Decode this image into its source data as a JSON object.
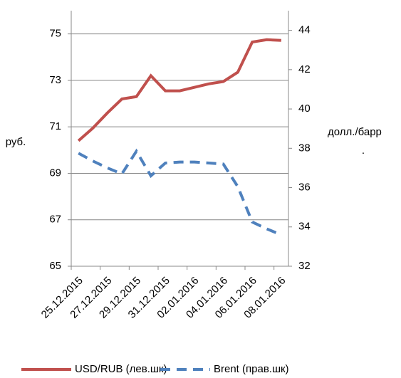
{
  "chart_data": {
    "type": "line",
    "categories": [
      "25.12.2015",
      null,
      "27.12.2015",
      null,
      "29.12.2015",
      null,
      "31.12.2015",
      null,
      "02.01.2016",
      null,
      "04.01.2016",
      null,
      "06.01.2016",
      null,
      "08.01.2016"
    ],
    "series": [
      {
        "name": "USD/RUB (лев.шк)",
        "color": "#c0504d",
        "values": [
          70.4,
          70.95,
          71.6,
          72.2,
          72.3,
          73.2,
          72.55,
          72.55,
          72.7,
          72.85,
          72.95,
          73.35,
          74.65,
          74.75,
          74.72
        ]
      },
      {
        "name": "Brent (прав.шк)",
        "color": "#4f81bd",
        "axis": "y2",
        "dashed": true,
        "values": [
          37.75,
          37.35,
          37.0,
          36.7,
          37.85,
          36.6,
          37.25,
          37.3,
          37.3,
          37.25,
          37.2,
          36.05,
          34.25,
          33.9,
          33.6
        ]
      }
    ],
    "ylabel": "руб.",
    "y2label": "долл./барр",
    "y2label_suffix": ".",
    "ylim": [
      65,
      76
    ],
    "yticks": [
      65,
      67,
      69,
      71,
      73,
      75
    ],
    "y2lim": [
      32,
      45
    ],
    "y2ticks": [
      32,
      34,
      36,
      38,
      40,
      42,
      44
    ],
    "grid": true,
    "legend": "bottom"
  }
}
